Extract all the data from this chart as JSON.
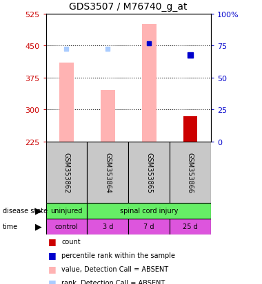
{
  "title": "GDS3507 / M76740_g_at",
  "samples": [
    "GSM353862",
    "GSM353864",
    "GSM353865",
    "GSM353866"
  ],
  "ylim_left": [
    225,
    525
  ],
  "ylim_right": [
    0,
    100
  ],
  "yticks_left": [
    225,
    300,
    375,
    450,
    525
  ],
  "yticks_right": [
    0,
    25,
    50,
    75,
    100
  ],
  "bar_values": [
    410,
    345,
    500,
    285
  ],
  "bar_color_pink": "#FFB3B3",
  "bar_color_red": "#CC0000",
  "bar_bottom": 225,
  "rank_light_blue": [
    443,
    442,
    456,
    null
  ],
  "rank_blue": [
    null,
    null,
    456,
    428
  ],
  "gridlines": [
    300,
    375,
    450
  ],
  "disease_state_color": "#66EE66",
  "time_color": "#DD55DD",
  "time_labels": [
    "control",
    "3 d",
    "7 d",
    "25 d"
  ],
  "sample_box_color": "#C8C8C8",
  "left_tick_color": "#CC0000",
  "right_tick_color": "#0000CC",
  "legend_colors": [
    "#CC0000",
    "#0000CC",
    "#FFB3B3",
    "#AACCFF"
  ],
  "legend_labels": [
    "count",
    "percentile rank within the sample",
    "value, Detection Call = ABSENT",
    "rank, Detection Call = ABSENT"
  ]
}
